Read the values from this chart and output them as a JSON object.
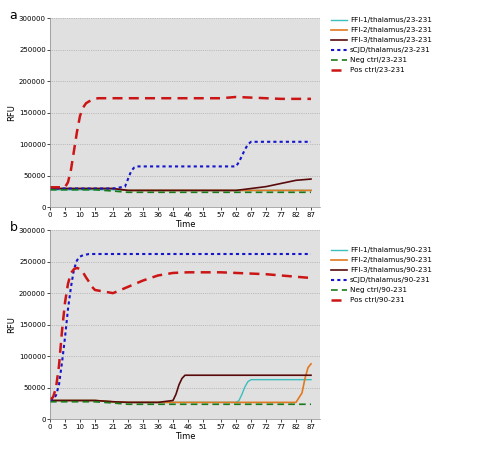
{
  "title_a": "a",
  "title_b": "b",
  "xlabel": "Time",
  "ylabel": "RFU",
  "ylim": [
    0,
    300000
  ],
  "yticks": [
    0,
    50000,
    100000,
    150000,
    200000,
    250000,
    300000
  ],
  "xticks": [
    0,
    5,
    10,
    15,
    21,
    26,
    31,
    36,
    41,
    46,
    51,
    57,
    62,
    67,
    72,
    77,
    82,
    87
  ],
  "bg_color": "#e0e0e0",
  "legend_a": [
    {
      "label": "FFI-1/thalamus/23-231",
      "color": "#3bbfbf",
      "ls": "solid",
      "lw": 1.0
    },
    {
      "label": "FFI-2/thalamus/23-231",
      "color": "#e07820",
      "ls": "solid",
      "lw": 1.2
    },
    {
      "label": "FFI-3/thalamus/23-231",
      "color": "#5a0a0a",
      "ls": "solid",
      "lw": 1.2
    },
    {
      "label": "sCJD/thalamus/23-231",
      "color": "#1515cc",
      "ls": "dotted",
      "lw": 1.5
    },
    {
      "label": "Neg ctrl/23-231",
      "color": "#1a7a1a",
      "ls": "dashed",
      "lw": 1.2
    },
    {
      "label": "Pos ctrl/23-231",
      "color": "#cc1515",
      "ls": "dashed",
      "lw": 1.8
    }
  ],
  "legend_b": [
    {
      "label": "FFI-1/thalamus/90-231",
      "color": "#3bbfbf",
      "ls": "solid",
      "lw": 1.0
    },
    {
      "label": "FFI-2/thalamus/90-231",
      "color": "#e07820",
      "ls": "solid",
      "lw": 1.2
    },
    {
      "label": "FFI-3/thalamus/90-231",
      "color": "#5a0a0a",
      "ls": "solid",
      "lw": 1.2
    },
    {
      "label": "sCJD/thalamus/90-231",
      "color": "#1515cc",
      "ls": "dotted",
      "lw": 1.5
    },
    {
      "label": "Neg ctrl/90-231",
      "color": "#1a7a1a",
      "ls": "dashed",
      "lw": 1.2
    },
    {
      "label": "Pos ctrl/90-231",
      "color": "#cc1515",
      "ls": "dashed",
      "lw": 1.8
    }
  ],
  "series_a": {
    "FFI1": {
      "x": [
        0,
        5,
        10,
        15,
        21,
        26,
        31,
        36,
        41,
        46,
        51,
        57,
        62,
        67,
        72,
        77,
        82,
        87
      ],
      "y": [
        28000,
        28000,
        28000,
        28000,
        28000,
        27000,
        27000,
        27000,
        27000,
        27000,
        27000,
        27000,
        27000,
        27000,
        27000,
        27000,
        27000,
        27000
      ]
    },
    "FFI2": {
      "x": [
        0,
        5,
        10,
        15,
        21,
        26,
        31,
        36,
        41,
        46,
        51,
        57,
        62,
        67,
        72,
        77,
        82,
        87
      ],
      "y": [
        30000,
        30000,
        30000,
        30000,
        30000,
        27000,
        27000,
        27000,
        27000,
        27000,
        27000,
        27000,
        27000,
        27000,
        27000,
        27000,
        27000,
        27000
      ]
    },
    "FFI3": {
      "x": [
        0,
        5,
        10,
        15,
        21,
        26,
        31,
        36,
        41,
        46,
        51,
        57,
        62,
        67,
        72,
        77,
        82,
        87
      ],
      "y": [
        30000,
        30000,
        30000,
        30000,
        30000,
        27000,
        27000,
        27000,
        27000,
        27000,
        27000,
        27000,
        27000,
        30000,
        33000,
        38000,
        43000,
        45000
      ]
    },
    "sCJD": {
      "x": [
        0,
        5,
        10,
        15,
        21,
        25,
        26,
        27,
        28,
        29,
        30,
        31,
        36,
        41,
        46,
        51,
        57,
        62,
        63,
        64,
        65,
        66,
        67,
        68,
        69,
        70,
        71,
        72,
        77,
        82,
        87
      ],
      "y": [
        30000,
        30000,
        30000,
        30000,
        30000,
        33000,
        45000,
        57000,
        63000,
        65000,
        65000,
        65000,
        65000,
        65000,
        65000,
        65000,
        65000,
        65000,
        72000,
        82000,
        92000,
        100000,
        104000,
        104000,
        104000,
        104000,
        104000,
        104000,
        104000,
        104000,
        104000
      ]
    },
    "Neg": {
      "x": [
        0,
        5,
        10,
        15,
        21,
        26,
        31,
        36,
        41,
        46,
        51,
        57,
        62,
        67,
        72,
        77,
        82,
        87
      ],
      "y": [
        28000,
        28000,
        28000,
        28000,
        26000,
        24000,
        24000,
        24000,
        24000,
        24000,
        24000,
        24000,
        24000,
        24000,
        24000,
        24000,
        24000,
        24000
      ]
    },
    "Pos": {
      "x": [
        0,
        5,
        6,
        7,
        8,
        9,
        10,
        11,
        12,
        13,
        14,
        15,
        16,
        17,
        21,
        26,
        31,
        36,
        41,
        46,
        51,
        57,
        62,
        67,
        72,
        77,
        82,
        87
      ],
      "y": [
        32000,
        32000,
        40000,
        60000,
        90000,
        120000,
        145000,
        158000,
        165000,
        168000,
        170000,
        172000,
        173000,
        173000,
        173000,
        173000,
        173000,
        173000,
        173000,
        173000,
        173000,
        173000,
        175000,
        174000,
        173000,
        172000,
        172000,
        172000
      ]
    }
  },
  "series_b": {
    "FFI1": {
      "x": [
        0,
        5,
        10,
        15,
        21,
        26,
        31,
        36,
        41,
        46,
        51,
        57,
        62,
        63,
        64,
        65,
        66,
        67,
        72,
        77,
        82,
        87
      ],
      "y": [
        30000,
        30000,
        30000,
        30000,
        28000,
        27000,
        27000,
        27000,
        27000,
        27000,
        27000,
        27000,
        27000,
        30000,
        40000,
        52000,
        60000,
        63000,
        63000,
        63000,
        63000,
        63000
      ]
    },
    "FFI2": {
      "x": [
        0,
        5,
        10,
        15,
        21,
        26,
        31,
        36,
        41,
        46,
        51,
        57,
        62,
        67,
        72,
        77,
        82,
        84,
        85,
        86,
        87
      ],
      "y": [
        30000,
        30000,
        30000,
        30000,
        28000,
        27000,
        27000,
        27000,
        27000,
        27000,
        27000,
        27000,
        27000,
        27000,
        27000,
        27000,
        27000,
        42000,
        65000,
        82000,
        88000
      ]
    },
    "FFI3": {
      "x": [
        0,
        5,
        10,
        15,
        21,
        26,
        31,
        36,
        41,
        42,
        43,
        44,
        45,
        46,
        51,
        57,
        62,
        67,
        72,
        77,
        82,
        87
      ],
      "y": [
        30000,
        30000,
        30000,
        30000,
        28000,
        27000,
        27000,
        27000,
        30000,
        40000,
        55000,
        65000,
        70000,
        70000,
        70000,
        70000,
        70000,
        70000,
        70000,
        70000,
        70000,
        70000
      ]
    },
    "sCJD": {
      "x": [
        0,
        1,
        2,
        3,
        4,
        5,
        6,
        7,
        8,
        9,
        10,
        11,
        12,
        13,
        14,
        15,
        21,
        26,
        31,
        36,
        41,
        46,
        51,
        57,
        62,
        67,
        72,
        77,
        82,
        87
      ],
      "y": [
        30000,
        32000,
        38000,
        55000,
        90000,
        130000,
        175000,
        210000,
        238000,
        252000,
        258000,
        260000,
        261000,
        262000,
        262000,
        262000,
        262000,
        262000,
        262000,
        262000,
        262000,
        262000,
        262000,
        262000,
        262000,
        262000,
        262000,
        262000,
        262000,
        262000
      ]
    },
    "Neg": {
      "x": [
        0,
        5,
        10,
        15,
        21,
        26,
        31,
        36,
        41,
        46,
        51,
        57,
        62,
        67,
        72,
        77,
        82,
        87
      ],
      "y": [
        28000,
        28000,
        28000,
        28000,
        26000,
        24000,
        24000,
        24000,
        24000,
        24000,
        24000,
        24000,
        24000,
        24000,
        24000,
        24000,
        24000,
        24000
      ]
    },
    "Pos": {
      "x": [
        0,
        1,
        2,
        3,
        4,
        5,
        6,
        7,
        8,
        9,
        10,
        11,
        12,
        13,
        14,
        15,
        21,
        26,
        31,
        36,
        41,
        46,
        51,
        57,
        62,
        67,
        72,
        77,
        82,
        87
      ],
      "y": [
        32000,
        35000,
        50000,
        85000,
        140000,
        185000,
        215000,
        232000,
        238000,
        240000,
        238000,
        233000,
        225000,
        218000,
        210000,
        205000,
        200000,
        210000,
        220000,
        228000,
        232000,
        233000,
        233000,
        233000,
        232000,
        231000,
        230000,
        228000,
        226000,
        224000
      ]
    }
  }
}
